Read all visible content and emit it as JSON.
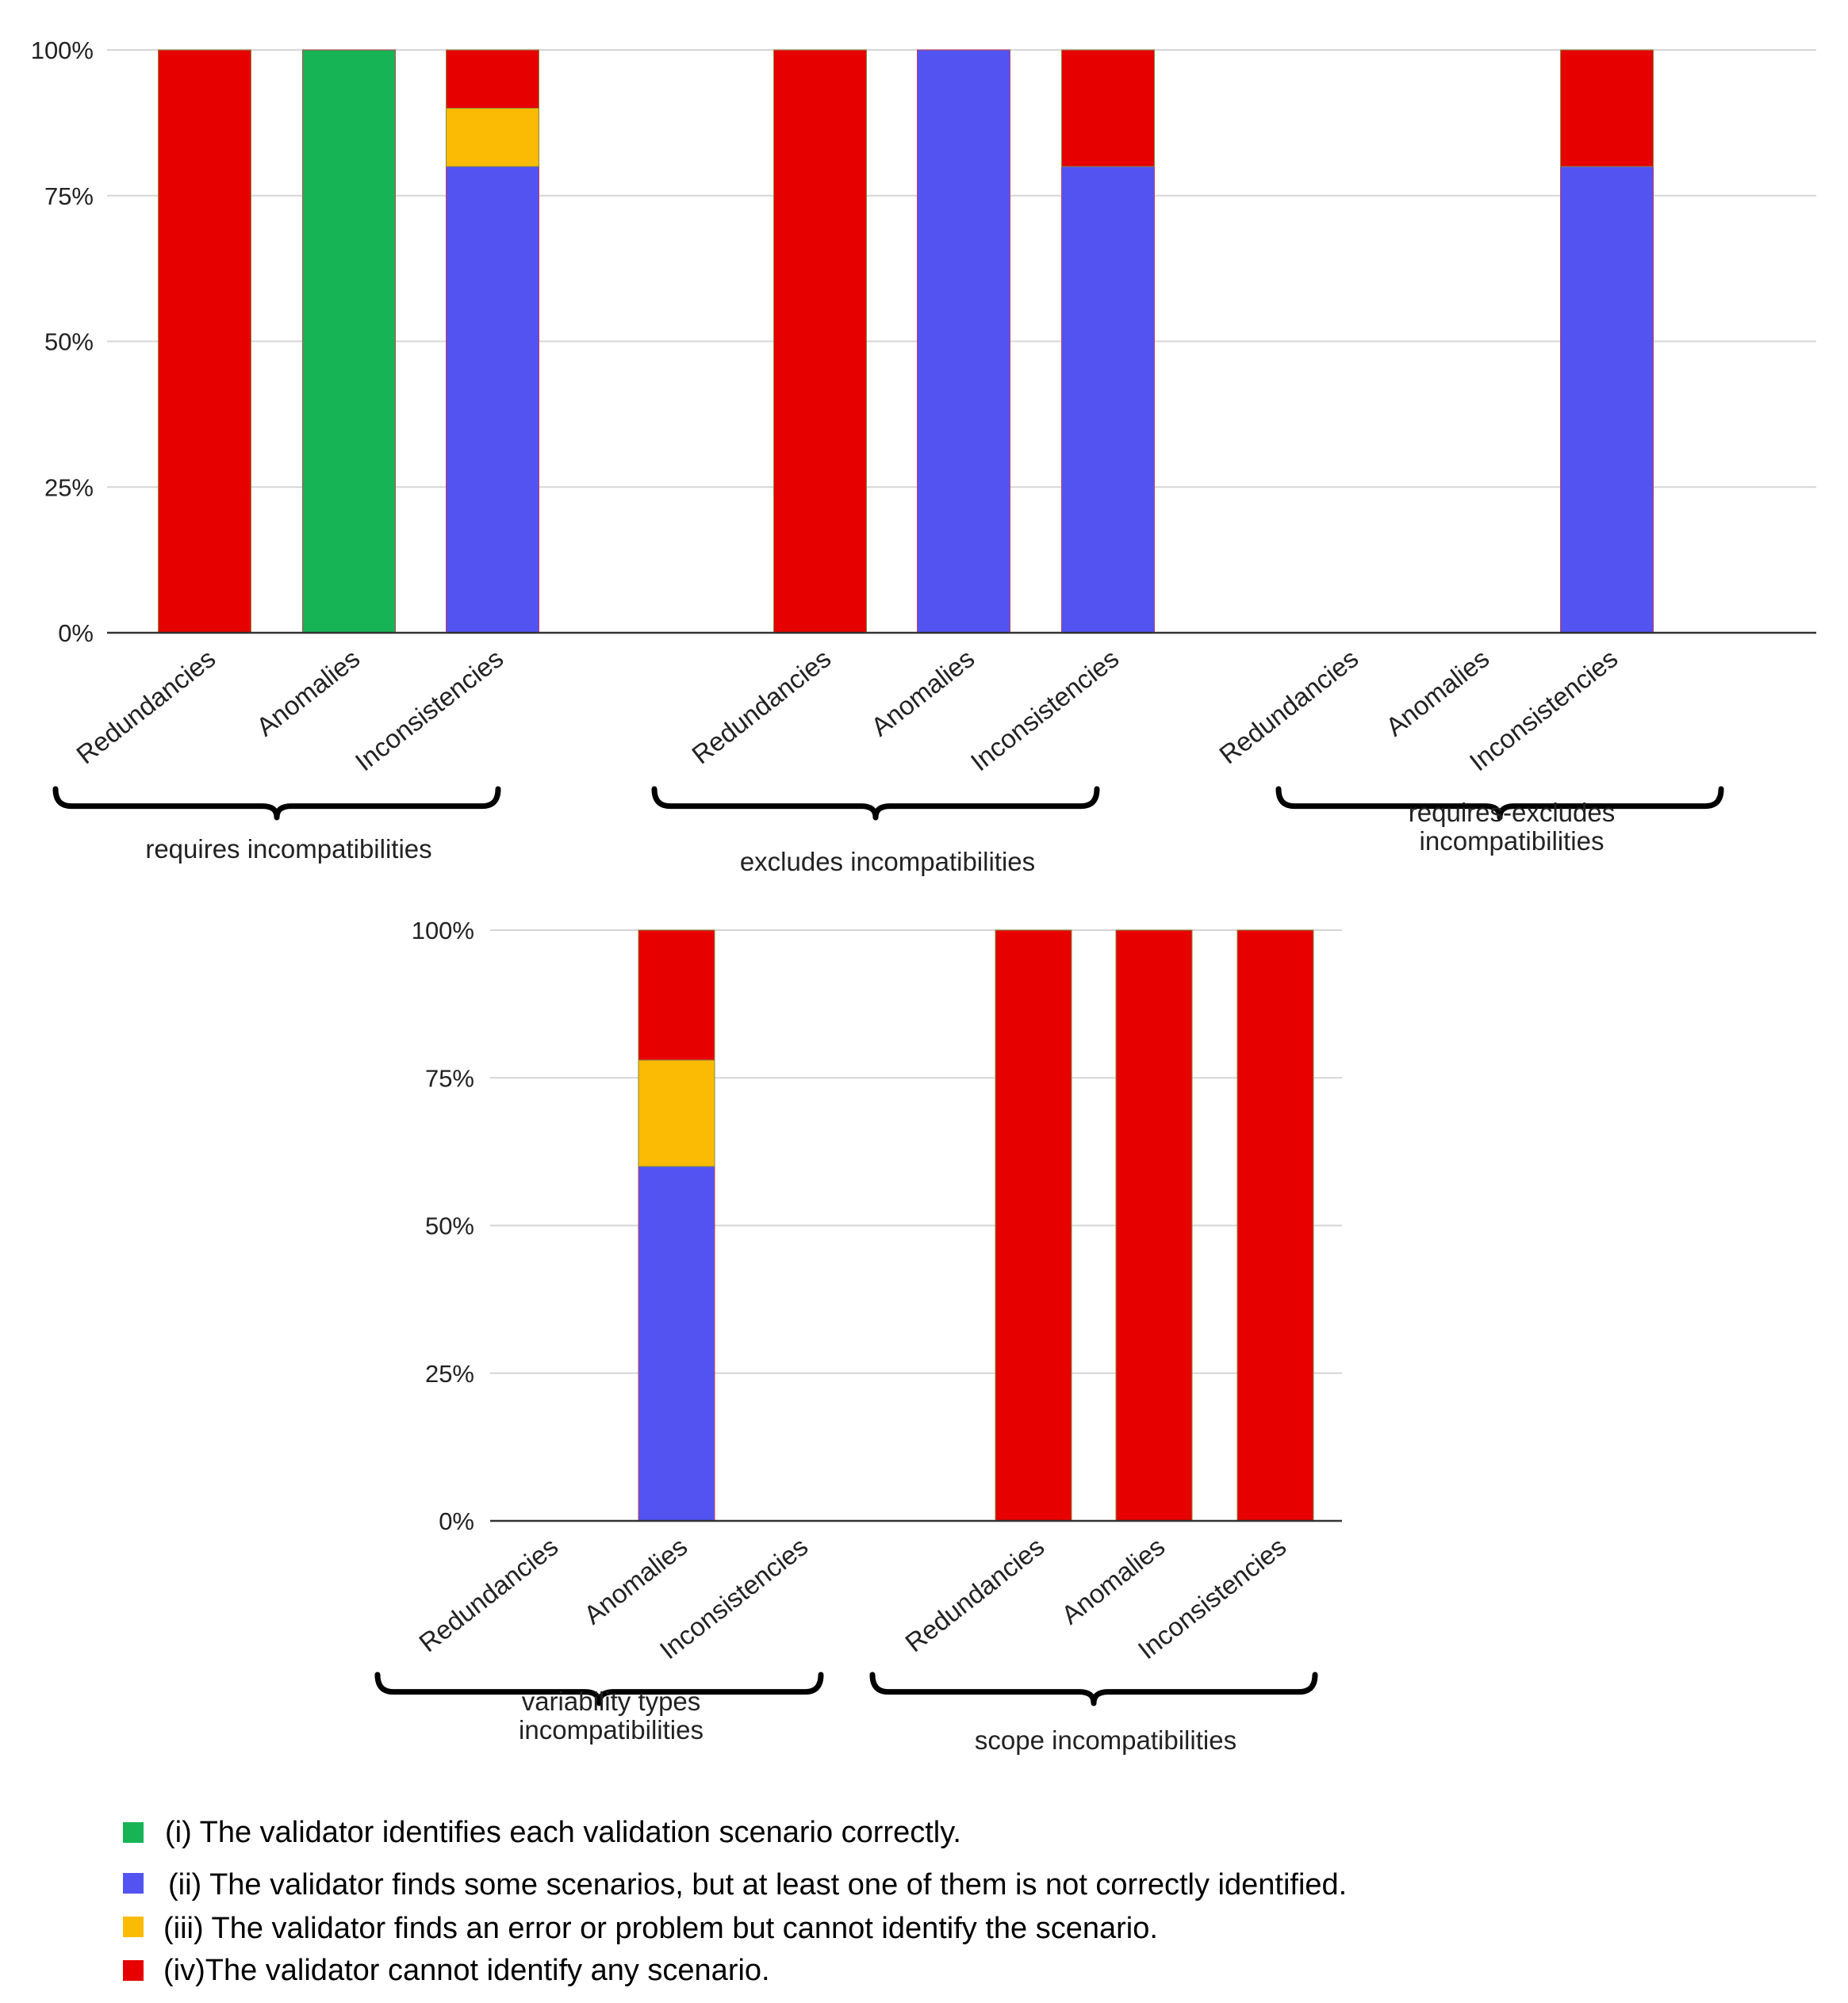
{
  "series_colors": {
    "i": "#16b455",
    "ii": "#5353f2",
    "iii": "#fbbb05",
    "iv": "#e60000"
  },
  "chart_data": [
    {
      "type": "bar",
      "stacked": true,
      "ylim": [
        0,
        100
      ],
      "yticks": [
        "0%",
        "25%",
        "50%",
        "75%",
        "100%"
      ],
      "groups": [
        {
          "label": [
            "requires incompatibilities"
          ],
          "categories": [
            "Redundancies",
            "Anomalies",
            "Inconsistencies"
          ],
          "stacks": [
            {
              "i": 0,
              "ii": 0,
              "iii": 0,
              "iv": 100
            },
            {
              "i": 100,
              "ii": 0,
              "iii": 0,
              "iv": 0
            },
            {
              "i": 0,
              "ii": 80,
              "iii": 10,
              "iv": 10
            }
          ]
        },
        {
          "label": [
            "excludes incompatibilities"
          ],
          "categories": [
            "Redundancies",
            "Anomalies",
            "Inconsistencies"
          ],
          "stacks": [
            {
              "i": 0,
              "ii": 0,
              "iii": 0,
              "iv": 100
            },
            {
              "i": 0,
              "ii": 100,
              "iii": 0,
              "iv": 0
            },
            {
              "i": 0,
              "ii": 80,
              "iii": 0,
              "iv": 20
            }
          ]
        },
        {
          "label": [
            "requires-excludes",
            "incompatibilities"
          ],
          "categories": [
            "Redundancies",
            "Anomalies",
            "Inconsistencies"
          ],
          "stacks": [
            {
              "i": 0,
              "ii": 0,
              "iii": 0,
              "iv": 0
            },
            {
              "i": 0,
              "ii": 0,
              "iii": 0,
              "iv": 0
            },
            {
              "i": 0,
              "ii": 80,
              "iii": 0,
              "iv": 20
            }
          ]
        }
      ]
    },
    {
      "type": "bar",
      "stacked": true,
      "ylim": [
        0,
        100
      ],
      "yticks": [
        "0%",
        "25%",
        "50%",
        "75%",
        "100%"
      ],
      "groups": [
        {
          "label": [
            "variability types",
            "incompatibilities"
          ],
          "categories": [
            "Redundancies",
            "Anomalies",
            "Inconsistencies"
          ],
          "stacks": [
            {
              "i": 0,
              "ii": 0,
              "iii": 0,
              "iv": 0
            },
            {
              "i": 0,
              "ii": 60,
              "iii": 18,
              "iv": 22
            },
            {
              "i": 0,
              "ii": 0,
              "iii": 0,
              "iv": 0
            }
          ]
        },
        {
          "label": [
            "scope incompatibilities"
          ],
          "categories": [
            "Redundancies",
            "Anomalies",
            "Inconsistencies"
          ],
          "stacks": [
            {
              "i": 0,
              "ii": 0,
              "iii": 0,
              "iv": 100
            },
            {
              "i": 0,
              "ii": 0,
              "iii": 0,
              "iv": 100
            },
            {
              "i": 0,
              "ii": 0,
              "iii": 0,
              "iv": 100
            }
          ]
        }
      ]
    }
  ],
  "legend": [
    {
      "key": "i",
      "label": "(i) The validator identifies each validation scenario correctly."
    },
    {
      "key": "ii",
      "label": "(ii) The validator finds some scenarios, but at least one of them is not correctly identified."
    },
    {
      "key": "iii",
      "label": "(iii) The validator finds an error or problem but cannot identify the scenario."
    },
    {
      "key": "iv",
      "label": "(iv)The validator cannot identify any scenario."
    }
  ]
}
